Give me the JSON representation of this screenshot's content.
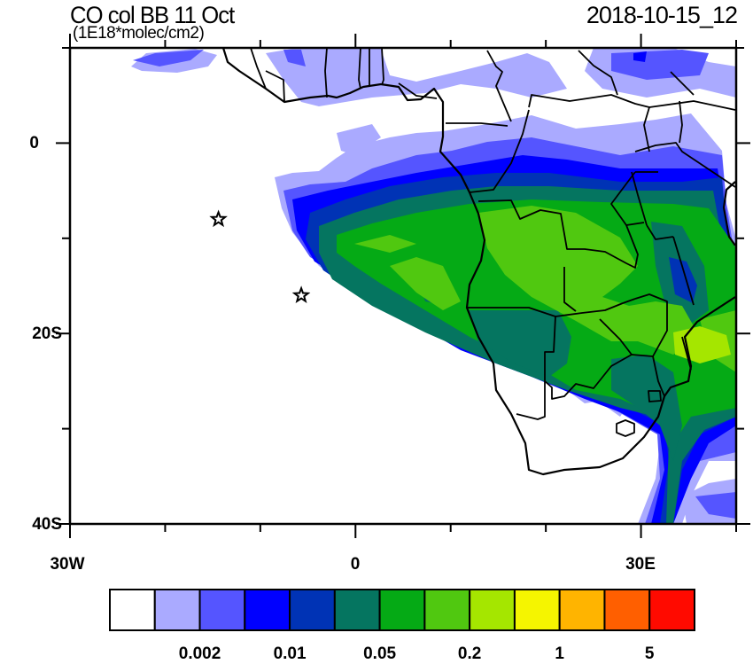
{
  "header": {
    "title": "CO col BB 11 Oct",
    "units": "(1E18*molec/cm2)",
    "timestamp": "2018-10-15_12"
  },
  "map": {
    "lon_range": [
      -30,
      40
    ],
    "lat_range": [
      -40,
      10
    ],
    "x_tick_labels": [
      "30W",
      "0",
      "30E"
    ],
    "y_tick_labels": [
      "0",
      "20S",
      "40S"
    ],
    "markers": [
      {
        "symbol": "star",
        "lon": -14.4,
        "lat": -8.0
      },
      {
        "symbol": "star",
        "lon": -5.7,
        "lat": -16.0
      }
    ]
  },
  "colorbar": {
    "colors": [
      "#ffffff",
      "#aaaaff",
      "#5555ff",
      "#0000ff",
      "#0033b5",
      "#057560",
      "#05aa15",
      "#50c810",
      "#a5e600",
      "#f5f500",
      "#ffb400",
      "#ff5f00",
      "#ff0a00"
    ],
    "labels": [
      "0.002",
      "0.01",
      "0.05",
      "0.2",
      "1",
      "5"
    ]
  }
}
